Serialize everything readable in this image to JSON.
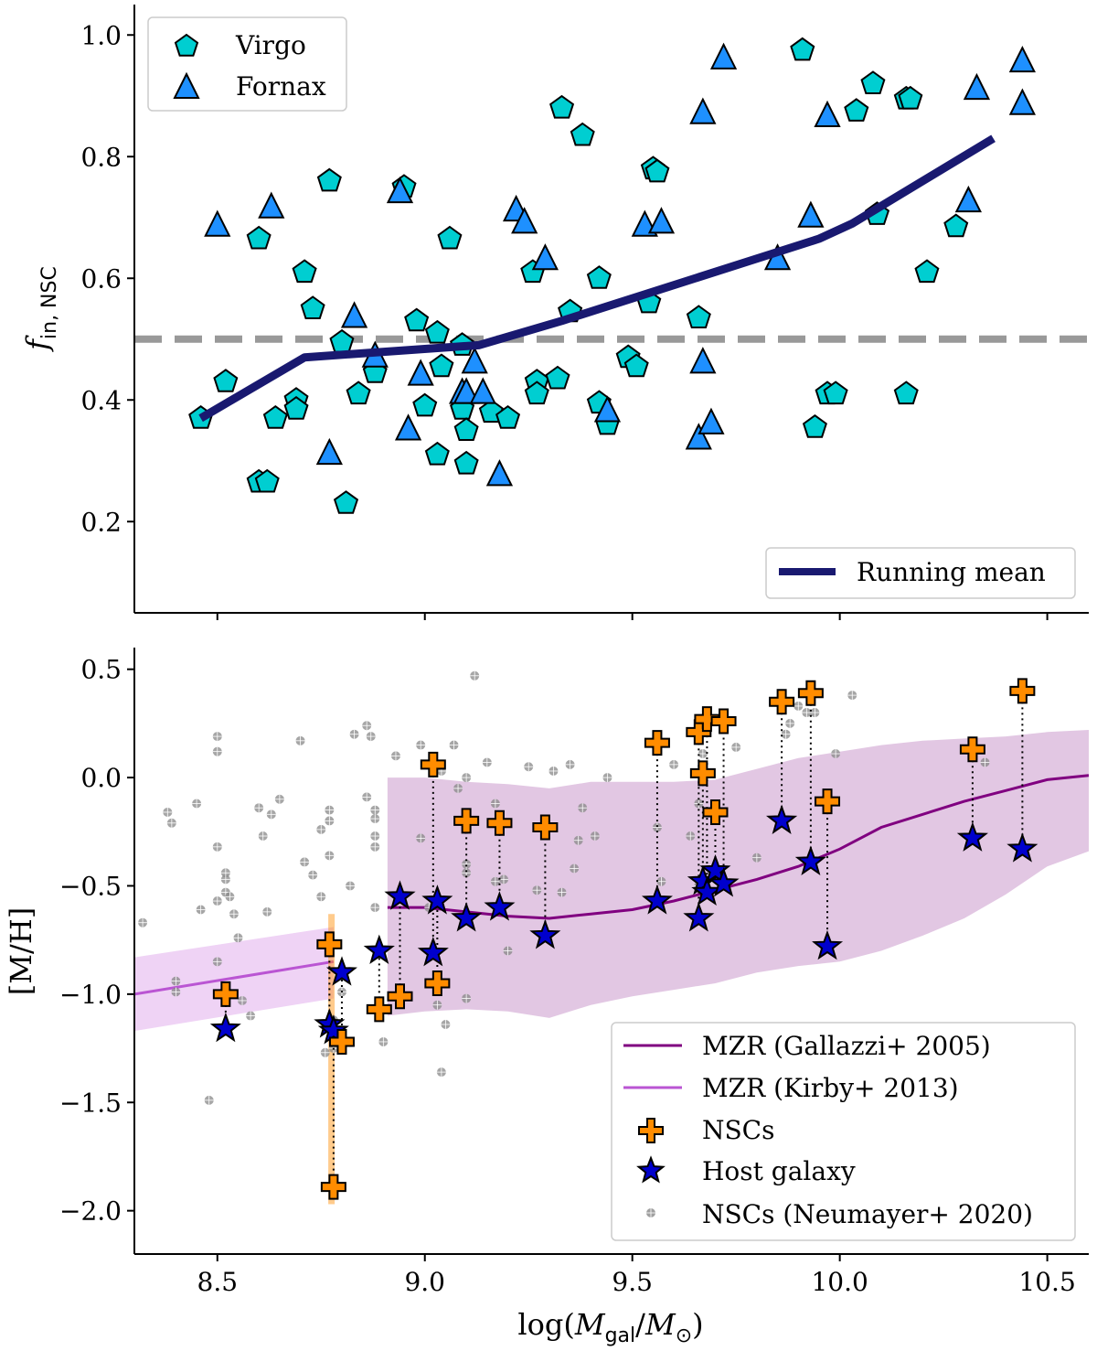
{
  "chart_data": [
    {
      "type": "scatter",
      "panel": "top",
      "ylabel_main": "f",
      "ylabel_sub": "in, NSC",
      "xlim": [
        8.3,
        10.6
      ],
      "ylim": [
        0.05,
        1.05
      ],
      "yticks": [
        0.2,
        0.4,
        0.6,
        0.8,
        1.0
      ],
      "ytick_labels": [
        "0.2",
        "0.4",
        "0.6",
        "0.8",
        "1.0"
      ],
      "xticks": [
        8.5,
        9.0,
        9.5,
        10.0,
        10.5
      ],
      "reference_line": 0.5,
      "colors": {
        "virgo": "#00CED1",
        "fornax": "#1E90FF",
        "running_mean": "#191970",
        "reference": "#999999"
      },
      "legend_upper": [
        "Virgo",
        "Fornax"
      ],
      "legend_lower": [
        "Running mean"
      ],
      "series": [
        {
          "name": "Virgo",
          "marker": "pentagon",
          "points": [
            [
              8.46,
              0.37
            ],
            [
              8.52,
              0.43
            ],
            [
              8.6,
              0.665
            ],
            [
              8.6,
              0.265
            ],
            [
              8.62,
              0.265
            ],
            [
              8.64,
              0.37
            ],
            [
              8.69,
              0.4
            ],
            [
              8.69,
              0.385
            ],
            [
              8.71,
              0.61
            ],
            [
              8.73,
              0.55
            ],
            [
              8.77,
              0.76
            ],
            [
              8.8,
              0.495
            ],
            [
              8.81,
              0.23
            ],
            [
              8.84,
              0.41
            ],
            [
              8.88,
              0.445
            ],
            [
              8.95,
              0.75
            ],
            [
              8.98,
              0.53
            ],
            [
              9.0,
              0.39
            ],
            [
              9.03,
              0.51
            ],
            [
              9.03,
              0.31
            ],
            [
              9.04,
              0.455
            ],
            [
              9.06,
              0.665
            ],
            [
              9.09,
              0.385
            ],
            [
              9.1,
              0.35
            ],
            [
              9.1,
              0.295
            ],
            [
              9.09,
              0.49
            ],
            [
              9.16,
              0.38
            ],
            [
              9.2,
              0.37
            ],
            [
              9.26,
              0.61
            ],
            [
              9.27,
              0.43
            ],
            [
              9.27,
              0.41
            ],
            [
              9.32,
              0.435
            ],
            [
              9.33,
              0.88
            ],
            [
              9.35,
              0.545
            ],
            [
              9.38,
              0.835
            ],
            [
              9.42,
              0.6
            ],
            [
              9.42,
              0.395
            ],
            [
              9.44,
              0.36
            ],
            [
              9.49,
              0.47
            ],
            [
              9.51,
              0.455
            ],
            [
              9.54,
              0.56
            ],
            [
              9.55,
              0.78
            ],
            [
              9.56,
              0.775
            ],
            [
              9.66,
              0.535
            ],
            [
              9.91,
              0.975
            ],
            [
              9.94,
              0.355
            ],
            [
              9.97,
              0.41
            ],
            [
              9.99,
              0.41
            ],
            [
              10.04,
              0.875
            ],
            [
              10.08,
              0.92
            ],
            [
              10.09,
              0.705
            ],
            [
              10.16,
              0.895
            ],
            [
              10.17,
              0.895
            ],
            [
              10.21,
              0.61
            ],
            [
              10.16,
              0.41
            ],
            [
              10.28,
              0.685
            ]
          ]
        },
        {
          "name": "Fornax",
          "marker": "triangle",
          "points": [
            [
              8.5,
              0.685
            ],
            [
              8.63,
              0.715
            ],
            [
              8.77,
              0.31
            ],
            [
              8.83,
              0.535
            ],
            [
              8.88,
              0.47
            ],
            [
              8.94,
              0.74
            ],
            [
              8.96,
              0.35
            ],
            [
              8.99,
              0.44
            ],
            [
              9.09,
              0.41
            ],
            [
              9.1,
              0.41
            ],
            [
              9.12,
              0.46
            ],
            [
              9.14,
              0.41
            ],
            [
              9.18,
              0.275
            ],
            [
              9.22,
              0.71
            ],
            [
              9.24,
              0.69
            ],
            [
              9.29,
              0.63
            ],
            [
              9.44,
              0.38
            ],
            [
              9.53,
              0.685
            ],
            [
              9.57,
              0.69
            ],
            [
              9.66,
              0.335
            ],
            [
              9.67,
              0.46
            ],
            [
              9.67,
              0.87
            ],
            [
              9.69,
              0.36
            ],
            [
              9.72,
              0.96
            ],
            [
              9.85,
              0.63
            ],
            [
              9.93,
              0.7
            ],
            [
              9.97,
              0.865
            ],
            [
              10.31,
              0.725
            ],
            [
              10.33,
              0.91
            ],
            [
              10.44,
              0.955
            ],
            [
              10.44,
              0.885
            ]
          ]
        },
        {
          "name": "Running mean",
          "marker": "line",
          "points": [
            [
              8.46,
              0.37
            ],
            [
              8.71,
              0.47
            ],
            [
              9.13,
              0.49
            ],
            [
              9.33,
              0.53
            ],
            [
              9.95,
              0.665
            ],
            [
              10.03,
              0.69
            ],
            [
              10.37,
              0.83
            ]
          ]
        }
      ]
    },
    {
      "type": "scatter",
      "panel": "bottom",
      "ylabel": "[M/H]",
      "xlabel_pre": "log(",
      "xlabel_m1": "M",
      "xlabel_s1": "gal",
      "xlabel_mid": "/",
      "xlabel_m2": "M",
      "xlabel_s2": "⊙",
      "xlabel_post": ")",
      "xlim": [
        8.3,
        10.6
      ],
      "ylim": [
        -2.2,
        0.6
      ],
      "yticks": [
        -2.0,
        -1.5,
        -1.0,
        -0.5,
        0.0,
        0.5
      ],
      "ytick_labels": [
        "−2.0",
        "−1.5",
        "−1.0",
        "−0.5",
        "0.0",
        "0.5"
      ],
      "xticks": [
        8.5,
        9.0,
        9.5,
        10.0,
        10.5
      ],
      "xtick_labels": [
        "8.5",
        "9.0",
        "9.5",
        "10.0",
        "10.5"
      ],
      "colors": {
        "gallazzi": "#800080",
        "gallazzi_band": "#D8B4DA",
        "kirby": "#BA55D3",
        "kirby_band": "#EFD3F5",
        "nsc": "#FF8C00",
        "host": "#0000CD",
        "neumayer": "#888888"
      },
      "legend": [
        "MZR (Gallazzi+ 2005)",
        "MZR (Kirby+ 2013)",
        "NSCs",
        "Host galaxy",
        "NSCs (Neumayer+ 2020)"
      ],
      "gallazzi": {
        "x": [
          8.91,
          9.0,
          9.1,
          9.2,
          9.3,
          9.4,
          9.5,
          9.6,
          9.7,
          9.8,
          9.9,
          10.0,
          10.1,
          10.2,
          10.3,
          10.4,
          10.5,
          10.6
        ],
        "mean": [
          -0.6,
          -0.6,
          -0.62,
          -0.64,
          -0.65,
          -0.63,
          -0.61,
          -0.57,
          -0.52,
          -0.47,
          -0.41,
          -0.33,
          -0.23,
          -0.17,
          -0.11,
          -0.06,
          -0.01,
          0.01
        ],
        "upper": [
          0.0,
          0.0,
          -0.02,
          -0.03,
          -0.05,
          -0.02,
          -0.02,
          -0.02,
          -0.01,
          0.04,
          0.09,
          0.12,
          0.15,
          0.17,
          0.18,
          0.19,
          0.21,
          0.22
        ],
        "lower": [
          -1.1,
          -1.08,
          -1.07,
          -1.08,
          -1.11,
          -1.05,
          -1.01,
          -0.98,
          -0.95,
          -0.9,
          -0.87,
          -0.85,
          -0.8,
          -0.73,
          -0.65,
          -0.54,
          -0.41,
          -0.34
        ]
      },
      "kirby": {
        "x": [
          8.3,
          8.78
        ],
        "mean": [
          -1.0,
          -0.85
        ],
        "upper": [
          -0.83,
          -0.69
        ],
        "lower": [
          -1.17,
          -1.02
        ]
      },
      "pairs": [
        {
          "x": 8.52,
          "nsc": -1.0,
          "host": -1.16
        },
        {
          "x": 8.77,
          "nsc": -0.77,
          "host": -1.14
        },
        {
          "x": 8.78,
          "nsc": -1.89,
          "host": -1.17
        },
        {
          "x": 8.8,
          "nsc": -1.22,
          "host": -0.9
        },
        {
          "x": 8.89,
          "nsc": -1.07,
          "host": -0.8
        },
        {
          "x": 8.94,
          "nsc": -1.01,
          "host": -0.55
        },
        {
          "x": 9.02,
          "nsc": 0.06,
          "host": -0.81
        },
        {
          "x": 9.03,
          "nsc": -0.95,
          "host": -0.57
        },
        {
          "x": 9.1,
          "nsc": -0.2,
          "host": -0.65
        },
        {
          "x": 9.18,
          "nsc": -0.21,
          "host": -0.6
        },
        {
          "x": 9.29,
          "nsc": -0.23,
          "host": -0.73
        },
        {
          "x": 9.56,
          "nsc": 0.16,
          "host": -0.57
        },
        {
          "x": 9.66,
          "nsc": 0.21,
          "host": -0.65
        },
        {
          "x": 9.67,
          "nsc": 0.02,
          "host": -0.48
        },
        {
          "x": 9.68,
          "nsc": 0.27,
          "host": -0.53
        },
        {
          "x": 9.7,
          "nsc": -0.16,
          "host": -0.43
        },
        {
          "x": 9.72,
          "nsc": 0.26,
          "host": -0.49
        },
        {
          "x": 9.86,
          "nsc": 0.35,
          "host": -0.2
        },
        {
          "x": 9.93,
          "nsc": 0.39,
          "host": -0.39
        },
        {
          "x": 9.97,
          "nsc": -0.11,
          "host": -0.78
        },
        {
          "x": 10.32,
          "nsc": 0.13,
          "host": -0.28
        },
        {
          "x": 10.44,
          "nsc": 0.4,
          "host": -0.33
        }
      ],
      "neumayer": [
        [
          8.32,
          -0.67
        ],
        [
          8.38,
          -0.16
        ],
        [
          8.39,
          -0.21
        ],
        [
          8.4,
          -0.94
        ],
        [
          8.4,
          -0.99
        ],
        [
          8.45,
          -0.12
        ],
        [
          8.46,
          -0.61
        ],
        [
          8.48,
          -1.49
        ],
        [
          8.5,
          0.19
        ],
        [
          8.5,
          0.12
        ],
        [
          8.5,
          -0.32
        ],
        [
          8.5,
          -0.57
        ],
        [
          8.5,
          -0.85
        ],
        [
          8.52,
          -0.44
        ],
        [
          8.52,
          -0.47
        ],
        [
          8.52,
          -0.53
        ],
        [
          8.53,
          -0.55
        ],
        [
          8.54,
          -0.63
        ],
        [
          8.55,
          -0.74
        ],
        [
          8.56,
          -1.03
        ],
        [
          8.58,
          -1.1
        ],
        [
          8.6,
          -0.14
        ],
        [
          8.61,
          -0.27
        ],
        [
          8.62,
          -0.62
        ],
        [
          8.63,
          -0.17
        ],
        [
          8.65,
          -0.1
        ],
        [
          8.7,
          0.17
        ],
        [
          8.71,
          -0.39
        ],
        [
          8.73,
          -0.45
        ],
        [
          8.75,
          -0.24
        ],
        [
          8.75,
          -0.55
        ],
        [
          8.76,
          -1.27
        ],
        [
          8.77,
          -0.15
        ],
        [
          8.77,
          -0.36
        ],
        [
          8.77,
          -0.2
        ],
        [
          8.78,
          -1.12
        ],
        [
          8.78,
          -1.25
        ],
        [
          8.8,
          -0.99
        ],
        [
          8.82,
          -0.5
        ],
        [
          8.83,
          0.2
        ],
        [
          8.86,
          0.24
        ],
        [
          8.86,
          -0.09
        ],
        [
          8.87,
          0.19
        ],
        [
          8.88,
          -0.15
        ],
        [
          8.88,
          -0.19
        ],
        [
          8.88,
          -0.27
        ],
        [
          8.88,
          -0.32
        ],
        [
          8.88,
          -0.6
        ],
        [
          8.9,
          -1.22
        ],
        [
          8.93,
          0.1
        ],
        [
          8.99,
          0.15
        ],
        [
          8.99,
          -0.28
        ],
        [
          9.01,
          -0.6
        ],
        [
          9.03,
          -1.05
        ],
        [
          9.04,
          0.03
        ],
        [
          9.04,
          -1.36
        ],
        [
          9.05,
          -1.14
        ],
        [
          9.07,
          0.15
        ],
        [
          9.08,
          -0.05
        ],
        [
          9.1,
          0.0
        ],
        [
          9.1,
          -0.24
        ],
        [
          9.1,
          -0.4
        ],
        [
          9.1,
          -0.44
        ],
        [
          9.1,
          -1.02
        ],
        [
          9.12,
          0.47
        ],
        [
          9.15,
          0.07
        ],
        [
          9.17,
          -0.12
        ],
        [
          9.17,
          -0.48
        ],
        [
          9.19,
          -0.47
        ],
        [
          9.2,
          -0.8
        ],
        [
          9.25,
          0.05
        ],
        [
          9.27,
          -0.52
        ],
        [
          9.31,
          0.03
        ],
        [
          9.33,
          -0.53
        ],
        [
          9.35,
          0.06
        ],
        [
          9.36,
          -0.42
        ],
        [
          9.37,
          -0.29
        ],
        [
          9.38,
          -0.14
        ],
        [
          9.41,
          -0.27
        ],
        [
          9.44,
          0.0
        ],
        [
          9.56,
          -0.23
        ],
        [
          9.57,
          -0.48
        ],
        [
          9.6,
          0.06
        ],
        [
          9.64,
          -0.27
        ],
        [
          9.66,
          -0.12
        ],
        [
          9.66,
          -0.5
        ],
        [
          9.67,
          0.11
        ],
        [
          9.75,
          0.14
        ],
        [
          9.8,
          -0.37
        ],
        [
          9.87,
          0.2
        ],
        [
          9.88,
          0.25
        ],
        [
          9.9,
          0.33
        ],
        [
          9.92,
          0.3
        ],
        [
          9.94,
          0.3
        ],
        [
          9.99,
          0.11
        ],
        [
          10.03,
          0.38
        ],
        [
          10.35,
          0.07
        ]
      ]
    }
  ]
}
